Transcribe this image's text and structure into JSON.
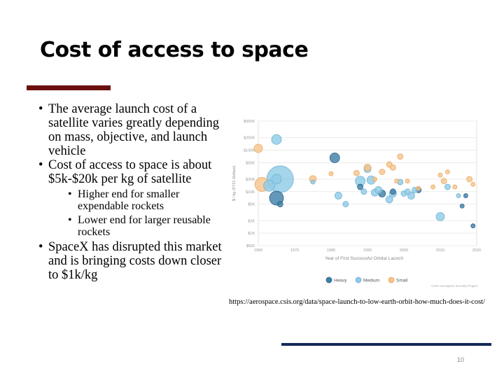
{
  "slide": {
    "title": "Cost of access to space",
    "bullets": [
      {
        "text": "The average launch cost of a satellite varies greatly depending on mass, objective, and launch vehicle"
      },
      {
        "text": "Cost of access to space is about $5k-$20k per kg of satellite"
      },
      {
        "text": "Higher end for smaller expendable rockets"
      },
      {
        "text": "Lower end for larger reusable rockets"
      },
      {
        "text": "SpaceX has disrupted this market and is bringing costs down closer to $1k/kg"
      }
    ],
    "source_url": "https://aerospace.csis.org/data/space-launch-to-low-earth-orbit-how-much-does-it-cost/",
    "page_number": "10"
  },
  "colors": {
    "title_bar": "#6b0f0f",
    "bottom_bar": "#15295a",
    "heavy": "#3d7ea6",
    "medium": "#8ecae6",
    "small": "#f6c48a"
  },
  "chart_data": {
    "type": "scatter",
    "xlabel": "Year of First Successful Orbital Launch",
    "ylabel": "$ / kg (FY21 Dollars)",
    "x_ticks": [
      "1960",
      "1970",
      "1980",
      "1990",
      "2000",
      "2010",
      "2020"
    ],
    "y_ticks": [
      "$500K",
      "$200K",
      "$100K",
      "$50K",
      "$20K",
      "$10K",
      "$5K",
      "$2K",
      "$1K",
      "$500"
    ],
    "xlim": [
      1960,
      2020
    ],
    "y_scale": "log",
    "ylim": [
      500,
      500000
    ],
    "legend": [
      "Heavy",
      "Medium",
      "Small"
    ],
    "legend_position": "bottom",
    "credit": "CSIS Aerospace Security Project",
    "series": [
      {
        "name": "Heavy",
        "points": [
          {
            "x": 1965,
            "y": 7000,
            "r": 10
          },
          {
            "x": 1966,
            "y": 5000,
            "r": 4
          },
          {
            "x": 1981,
            "y": 65000,
            "r": 7
          },
          {
            "x": 1988,
            "y": 13000,
            "r": 4
          },
          {
            "x": 1994,
            "y": 9000,
            "r": 5
          },
          {
            "x": 1997,
            "y": 10000,
            "r": 4
          },
          {
            "x": 2004,
            "y": 11000,
            "r": 4
          },
          {
            "x": 2016,
            "y": 4500,
            "r": 3
          },
          {
            "x": 2017,
            "y": 8000,
            "r": 3
          },
          {
            "x": 2019,
            "y": 1500,
            "r": 3
          }
        ]
      },
      {
        "name": "Medium",
        "points": [
          {
            "x": 1963,
            "y": 14000,
            "r": 8
          },
          {
            "x": 1965,
            "y": 180000,
            "r": 7
          },
          {
            "x": 1966,
            "y": 20000,
            "r": 19
          },
          {
            "x": 1965,
            "y": 20000,
            "r": 7
          },
          {
            "x": 1975,
            "y": 17000,
            "r": 3
          },
          {
            "x": 1982,
            "y": 8000,
            "r": 5
          },
          {
            "x": 1984,
            "y": 5000,
            "r": 4
          },
          {
            "x": 1988,
            "y": 18000,
            "r": 7
          },
          {
            "x": 1989,
            "y": 10000,
            "r": 4
          },
          {
            "x": 1990,
            "y": 35000,
            "r": 5
          },
          {
            "x": 1991,
            "y": 19000,
            "r": 6
          },
          {
            "x": 1992,
            "y": 9500,
            "r": 5
          },
          {
            "x": 1993,
            "y": 11000,
            "r": 5
          },
          {
            "x": 1996,
            "y": 6500,
            "r": 5
          },
          {
            "x": 1997,
            "y": 9000,
            "r": 5
          },
          {
            "x": 1999,
            "y": 17000,
            "r": 4
          },
          {
            "x": 2000,
            "y": 9000,
            "r": 4
          },
          {
            "x": 2001,
            "y": 10000,
            "r": 4
          },
          {
            "x": 2002,
            "y": 8000,
            "r": 5
          },
          {
            "x": 2003,
            "y": 11000,
            "r": 4
          },
          {
            "x": 2010,
            "y": 2500,
            "r": 6
          },
          {
            "x": 2012,
            "y": 13000,
            "r": 4
          },
          {
            "x": 2015,
            "y": 8000,
            "r": 3
          }
        ]
      },
      {
        "name": "Small",
        "points": [
          {
            "x": 1960,
            "y": 110000,
            "r": 6
          },
          {
            "x": 1961,
            "y": 15000,
            "r": 10
          },
          {
            "x": 1975,
            "y": 20000,
            "r": 5
          },
          {
            "x": 1980,
            "y": 27000,
            "r": 3
          },
          {
            "x": 1987,
            "y": 28000,
            "r": 4
          },
          {
            "x": 1990,
            "y": 38000,
            "r": 5
          },
          {
            "x": 1992,
            "y": 20000,
            "r": 3
          },
          {
            "x": 1994,
            "y": 30000,
            "r": 4
          },
          {
            "x": 1996,
            "y": 45000,
            "r": 4
          },
          {
            "x": 1997,
            "y": 38000,
            "r": 4
          },
          {
            "x": 1998,
            "y": 18000,
            "r": 3
          },
          {
            "x": 1999,
            "y": 70000,
            "r": 4
          },
          {
            "x": 2001,
            "y": 18000,
            "r": 3
          },
          {
            "x": 2004,
            "y": 12000,
            "r": 3
          },
          {
            "x": 2008,
            "y": 13000,
            "r": 3
          },
          {
            "x": 2010,
            "y": 25000,
            "r": 3
          },
          {
            "x": 2011,
            "y": 18000,
            "r": 4
          },
          {
            "x": 2012,
            "y": 30000,
            "r": 3
          },
          {
            "x": 2014,
            "y": 13000,
            "r": 3
          },
          {
            "x": 2018,
            "y": 20000,
            "r": 4
          },
          {
            "x": 2019,
            "y": 15000,
            "r": 3
          }
        ]
      }
    ]
  }
}
